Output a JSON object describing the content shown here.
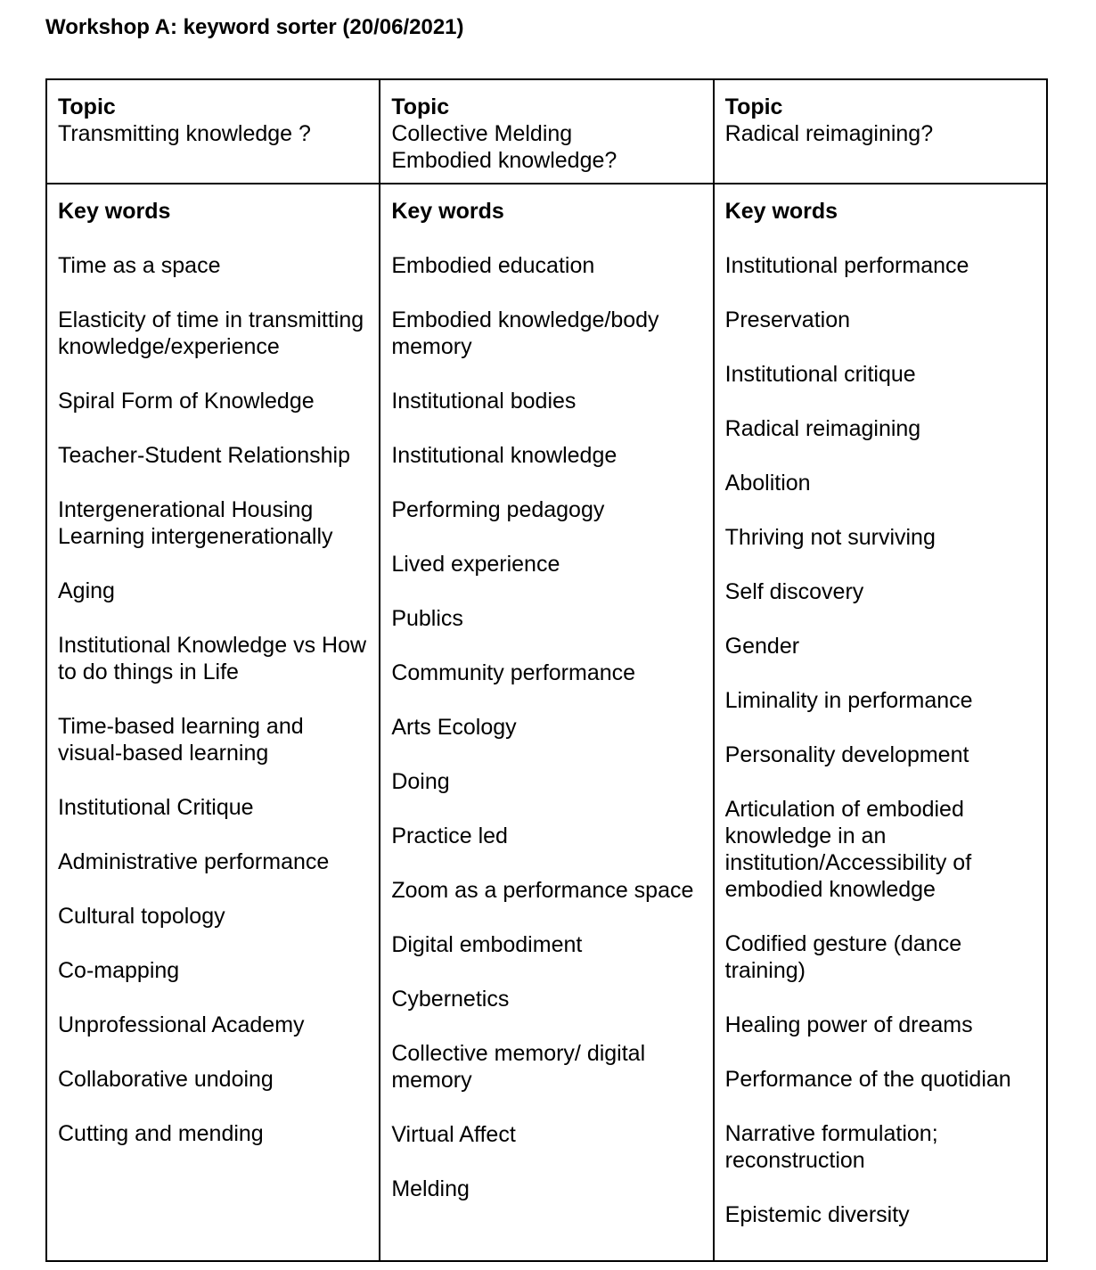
{
  "title": "Workshop A: keyword sorter (20/06/2021)",
  "columns": [
    {
      "topic_label": "Topic",
      "topic_lines": [
        "Transmitting knowledge ?"
      ],
      "keywords_label": "Key words",
      "keywords": [
        "Time as a space",
        "Elasticity of time in transmitting knowledge/experience",
        "Spiral Form of Knowledge",
        "Teacher-Student Relationship",
        "Intergenerational Housing Learning intergenerationally",
        "Aging",
        "Institutional Knowledge vs How to do things in Life",
        "Time-based learning and visual-based learning",
        "Institutional Critique",
        "Administrative performance",
        "Cultural topology",
        "Co-mapping",
        "Unprofessional Academy",
        "Collaborative undoing",
        "Cutting and mending"
      ]
    },
    {
      "topic_label": "Topic",
      "topic_lines": [
        "Collective Melding",
        "Embodied knowledge?"
      ],
      "keywords_label": "Key words",
      "keywords": [
        "Embodied education",
        "Embodied knowledge/body memory",
        "Institutional bodies",
        "Institutional knowledge",
        "Performing pedagogy",
        "Lived experience",
        "Publics",
        "Community performance",
        "Arts Ecology",
        "Doing",
        "Practice led",
        "Zoom as a performance space",
        "Digital embodiment",
        "Cybernetics",
        "Collective memory/ digital memory",
        "Virtual Affect",
        "Melding"
      ]
    },
    {
      "topic_label": "Topic",
      "topic_lines": [
        "Radical reimagining?"
      ],
      "keywords_label": "Key words",
      "keywords": [
        "Institutional performance",
        "Preservation",
        "Institutional critique",
        "Radical reimagining",
        "Abolition",
        "Thriving not surviving",
        "Self discovery",
        "Gender",
        "Liminality in performance",
        "Personality development",
        "Articulation of embodied knowledge in an institution/Accessibility of embodied knowledge",
        "Codified gesture (dance training)",
        "Healing power of dreams",
        "Performance of the quotidian",
        "Narrative formulation; reconstruction",
        "Epistemic diversity"
      ]
    }
  ]
}
